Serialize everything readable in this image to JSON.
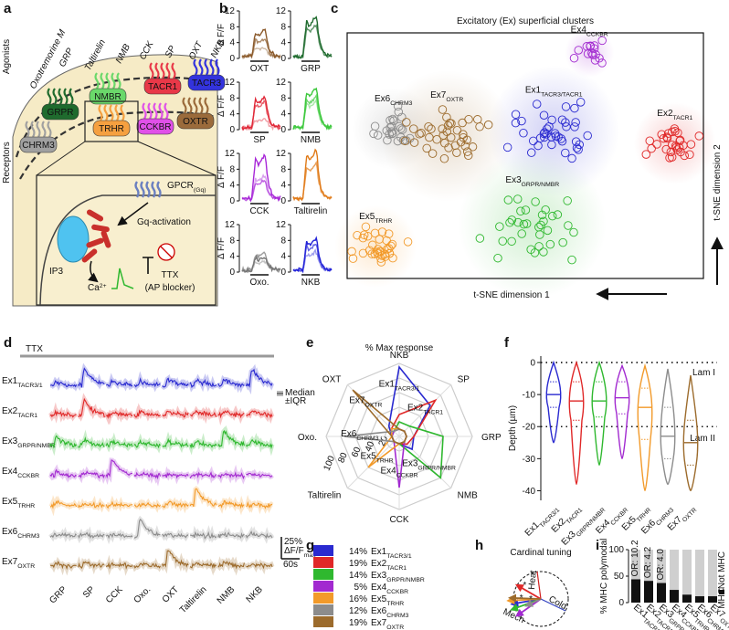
{
  "panel_labels": [
    "a",
    "b",
    "c",
    "d",
    "e",
    "f",
    "g",
    "h",
    "i"
  ],
  "clusters": [
    {
      "name": "Ex1",
      "color": "#2a2ad0"
    },
    {
      "name": "Ex2",
      "color": "#e02828"
    },
    {
      "name": "Ex3",
      "color": "#2fb82f"
    },
    {
      "name": "Ex4",
      "color": "#a22ad0"
    },
    {
      "name": "Ex5",
      "color": "#f29a2a"
    },
    {
      "name": "Ex6",
      "color": "#8c8c8c"
    },
    {
      "name": "Ex7",
      "color": "#9c6b2c"
    }
  ],
  "cluster_subs": [
    "TACR3/1",
    "TACR1",
    "GRPR/NMBR",
    "CCKBR",
    "TRHR",
    "CHRM3",
    "OXTR"
  ],
  "a": {
    "agonists_label": "Agonists",
    "receptors_label": "Receptors",
    "agonists": [
      {
        "name": "Oxotremorine M",
        "color": "#8a8a8a"
      },
      {
        "name": "GRP",
        "color": "#1f8a2e"
      },
      {
        "name": "Taltirelin",
        "color": "#f28c28"
      },
      {
        "name": "NMB",
        "color": "#3cc83c"
      },
      {
        "name": "CCK",
        "color": "#c828d8"
      },
      {
        "name": "SP",
        "color": "#e02838"
      },
      {
        "name": "OXT",
        "color": "#8b5a2b"
      },
      {
        "name": "NKB",
        "color": "#2323d8"
      }
    ],
    "receptors": [
      {
        "name": "GRPR",
        "color": "#1f6b2e"
      },
      {
        "name": "NMBR",
        "color": "#6ad86a"
      },
      {
        "name": "TACR1",
        "color": "#e83848"
      },
      {
        "name": "TACR3",
        "color": "#3333dd"
      },
      {
        "name": "CHRM3",
        "color": "#a0a0a0"
      },
      {
        "name": "TRHR",
        "color": "#f5a040"
      },
      {
        "name": "CCKBR",
        "color": "#e050e8"
      },
      {
        "name": "OXTR",
        "color": "#9b6b3b"
      }
    ],
    "gpcr": "GPCR",
    "gpcr_sub": "(Gq)",
    "gq": "Gq-activation",
    "ip3": "IP3",
    "ca": "Ca",
    "ca_sup": "2+",
    "ttx": "TTX",
    "ttx_note": "(AP blocker)"
  },
  "b": {
    "ylabel": "Δ F/F",
    "ylim": [
      0,
      12
    ],
    "yticks": [
      0,
      4,
      8,
      12
    ],
    "panels": [
      {
        "name": "OXT",
        "color": "#8b5a2b",
        "peaks": [
          6,
          4,
          2
        ]
      },
      {
        "name": "GRP",
        "color": "#1f6b2e",
        "peaks": [
          9,
          7
        ]
      },
      {
        "name": "SP",
        "color": "#e02838",
        "peaks": [
          7,
          6,
          2
        ]
      },
      {
        "name": "NMB",
        "color": "#3cc83c",
        "peaks": [
          9,
          7,
          6
        ]
      },
      {
        "name": "CCK",
        "color": "#a828d8",
        "peaks": [
          10,
          4,
          5
        ]
      },
      {
        "name": "Taltirelin",
        "color": "#e07a18",
        "peaks": [
          11,
          8
        ]
      },
      {
        "name": "Oxo.",
        "color": "#777777",
        "peaks": [
          3,
          4,
          2
        ]
      },
      {
        "name": "NKB",
        "color": "#2323d8",
        "peaks": [
          7,
          6,
          4
        ]
      }
    ]
  },
  "c": {
    "title": "Excitatory (Ex) superficial clusters",
    "xlabel": "t-SNE dimension 1",
    "ylabel": "t-SNE dimension 2",
    "subs": [
      "TACR3/TACR1",
      "TACR1",
      "GRPR/NMBR",
      "CCKBR",
      "TRHR",
      "CHRM3",
      "OXTR"
    ],
    "xlim": [
      0,
      100
    ],
    "ylim": [
      0,
      100
    ],
    "clusters": [
      {
        "x": 58,
        "y": 60,
        "n": 40,
        "spread": 8
      },
      {
        "x": 92,
        "y": 55,
        "n": 30,
        "spread": 5
      },
      {
        "x": 52,
        "y": 22,
        "n": 35,
        "spread": 9
      },
      {
        "x": 68,
        "y": 92,
        "n": 15,
        "spread": 3
      },
      {
        "x": 8,
        "y": 13,
        "n": 35,
        "spread": 5
      },
      {
        "x": 13,
        "y": 61,
        "n": 25,
        "spread": 5
      },
      {
        "x": 28,
        "y": 58,
        "n": 40,
        "spread": 8
      }
    ]
  },
  "d": {
    "ttx": "TTX",
    "median": "Median",
    "iqr": "±IQR",
    "scale_y": "25%",
    "scale_label": "ΔF/F",
    "scale_sub": "max",
    "scale_x": "60s",
    "stimuli": [
      {
        "name": "GRP",
        "color": "#1f8a2e"
      },
      {
        "name": "SP",
        "color": "#e02838"
      },
      {
        "name": "CCK",
        "color": "#a828d8"
      },
      {
        "name": "Oxo.",
        "color": "#777777"
      },
      {
        "name": "OXT",
        "color": "#8b5a2b"
      },
      {
        "name": "Taltirelin",
        "color": "#f28c28"
      },
      {
        "name": "NMB",
        "color": "#3cc83c"
      },
      {
        "name": "NKB",
        "color": "#2323d8"
      }
    ],
    "responses": [
      [
        0.2,
        0.9,
        0.2,
        0.2,
        0.3,
        0.3,
        0.3,
        0.9
      ],
      [
        0.2,
        0.8,
        0.2,
        0.2,
        0.2,
        0.2,
        0.2,
        0.3
      ],
      [
        0.5,
        0.3,
        0.2,
        0.2,
        0.2,
        0.2,
        0.8,
        0.3
      ],
      [
        0.2,
        0.2,
        0.9,
        0.1,
        0.1,
        0.1,
        0.1,
        0.1
      ],
      [
        0.2,
        0.1,
        0.1,
        0.1,
        0.2,
        0.9,
        0.2,
        0.1
      ],
      [
        0.1,
        0.1,
        0.1,
        0.9,
        0.1,
        0.1,
        0.1,
        0.1
      ],
      [
        0.1,
        0.2,
        0.1,
        0.1,
        0.9,
        0.2,
        0.2,
        0.1
      ]
    ]
  },
  "e": {
    "title": "% Max response",
    "axes": [
      "NKB",
      "SP",
      "GRP",
      "NMB",
      "CCK",
      "Taltirelin",
      "Oxo.",
      "OXT"
    ],
    "rings": [
      100,
      80,
      60,
      40,
      20
    ],
    "rlim": [
      0,
      100
    ],
    "values": [
      [
        95,
        60,
        20,
        25,
        10,
        10,
        10,
        20
      ],
      [
        30,
        70,
        20,
        15,
        10,
        10,
        10,
        15
      ],
      [
        20,
        20,
        60,
        80,
        10,
        10,
        10,
        10
      ],
      [
        10,
        10,
        10,
        10,
        70,
        10,
        10,
        10
      ],
      [
        10,
        10,
        10,
        10,
        10,
        60,
        10,
        15
      ],
      [
        10,
        10,
        10,
        10,
        10,
        10,
        75,
        10
      ],
      [
        10,
        10,
        10,
        10,
        10,
        10,
        10,
        90
      ]
    ]
  },
  "f": {
    "ylabel": "Depth (µm)",
    "ylim": [
      -43,
      2
    ],
    "yticks": [
      0,
      -10,
      -20,
      -30,
      -40
    ],
    "lamina_bounds": [
      0,
      -20
    ],
    "lamina": [
      "Lam I",
      "Lam II"
    ],
    "stats": [
      [
        -25,
        -14,
        -10,
        -6,
        0
      ],
      [
        -38,
        -18,
        -12,
        -6,
        0
      ],
      [
        -32,
        -17,
        -12,
        -6,
        0
      ],
      [
        -30,
        -16,
        -11,
        -6,
        -1
      ],
      [
        -40,
        -24,
        -14,
        -8,
        -1
      ],
      [
        -38,
        -30,
        -23,
        -14,
        -2
      ],
      [
        -40,
        -32,
        -25,
        -18,
        -4
      ]
    ]
  },
  "g": {
    "percents": [
      14,
      19,
      14,
      5,
      16,
      12,
      19
    ],
    "value_labels": [
      "14%",
      "19%",
      "14%",
      "5%",
      "16%",
      "12%",
      "19%"
    ]
  },
  "h": {
    "title": "Cardinal tuning",
    "heat": "Heat",
    "cold": "Cold",
    "mech": "Mech",
    "star": "*",
    "stars": [
      0,
      1,
      5
    ],
    "arrows": [
      {
        "angle": 190,
        "length": 0.9
      },
      {
        "angle": 150,
        "length": 0.85
      },
      {
        "angle": 200,
        "length": 0.95
      },
      {
        "angle": 215,
        "length": 0.9
      },
      {
        "angle": 183,
        "length": 1.0
      },
      {
        "angle": 205,
        "length": 0.5
      },
      {
        "angle": 178,
        "length": 0.95
      }
    ]
  },
  "i": {
    "ylabel": "% MHC polymodal",
    "ylim": [
      0,
      100
    ],
    "yticks": [
      0,
      50,
      100
    ],
    "values": [
      44,
      41,
      37,
      24,
      15,
      12,
      12
    ],
    "stars": "***",
    "odds": [
      "OR: 10.2",
      "OR: 4.2",
      "OR: 4.0"
    ],
    "legend": [
      "Not MHC",
      "MHC"
    ]
  }
}
